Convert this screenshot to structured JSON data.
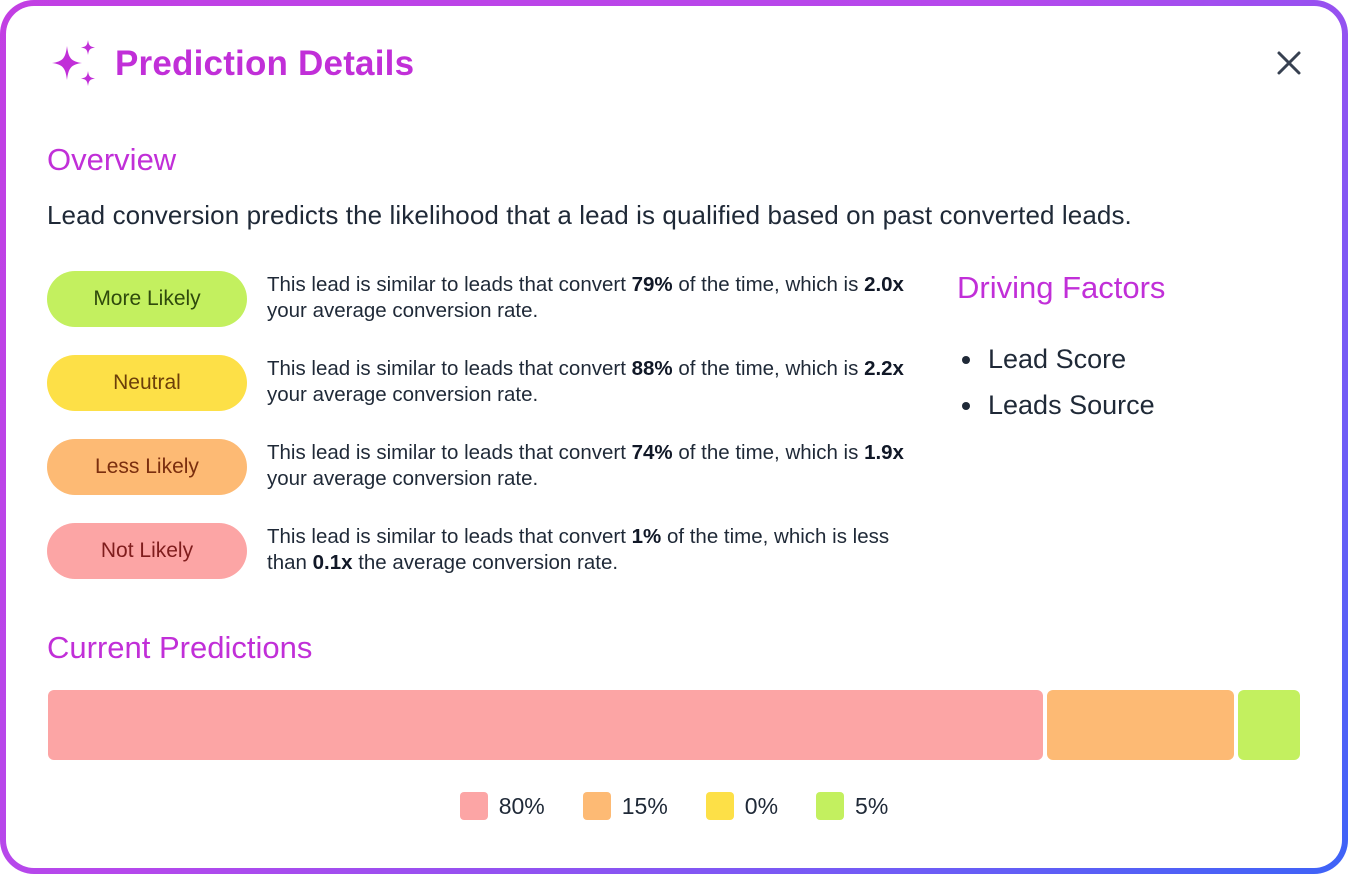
{
  "dialog": {
    "title": "Prediction Details",
    "header_icon": "sparkles-icon",
    "close_icon": "close-icon",
    "accent_color": "#c12fd8"
  },
  "overview": {
    "heading": "Overview",
    "text": "Lead conversion predicts the likelihood that a lead is qualified based on past converted leads."
  },
  "categories": [
    {
      "label": "More Likely",
      "bg": "#c3f05f",
      "fg": "#2f4a0c",
      "desc_a": "This lead is similar to leads that convert ",
      "pct": "79%",
      "desc_b": " of the time, which is ",
      "mult": "2.0x",
      "desc_c": " your average conversion rate."
    },
    {
      "label": "Neutral",
      "bg": "#fde047",
      "fg": "#6b3f0a",
      "desc_a": "This lead is similar to leads that convert ",
      "pct": "88%",
      "desc_b": " of the time, which is ",
      "mult": "2.2x",
      "desc_c": " your average conversion rate."
    },
    {
      "label": "Less Likely",
      "bg": "#fdba74",
      "fg": "#7a2e0e",
      "desc_a": "This lead is similar to leads that convert ",
      "pct": "74%",
      "desc_b": " of the time, which is ",
      "mult": "1.9x",
      "desc_c": " your average conversion rate."
    },
    {
      "label": "Not Likely",
      "bg": "#fca5a5",
      "fg": "#7f1d1d",
      "desc_a": "This lead is similar to leads that convert ",
      "pct": "1%",
      "desc_b": " of the time, which is less than ",
      "mult": "0.1x",
      "desc_c": " the average conversion rate."
    }
  ],
  "driving_factors": {
    "heading": "Driving Factors",
    "items": [
      "Lead Score",
      "Leads Source"
    ]
  },
  "current_predictions": {
    "heading": "Current Predictions",
    "segments": [
      {
        "label": "80%",
        "value": 80,
        "color": "#fca5a5"
      },
      {
        "label": "15%",
        "value": 15,
        "color": "#fdba74"
      },
      {
        "label": "0%",
        "value": 0,
        "color": "#fde047"
      },
      {
        "label": "5%",
        "value": 5,
        "color": "#c3f05f"
      }
    ]
  }
}
